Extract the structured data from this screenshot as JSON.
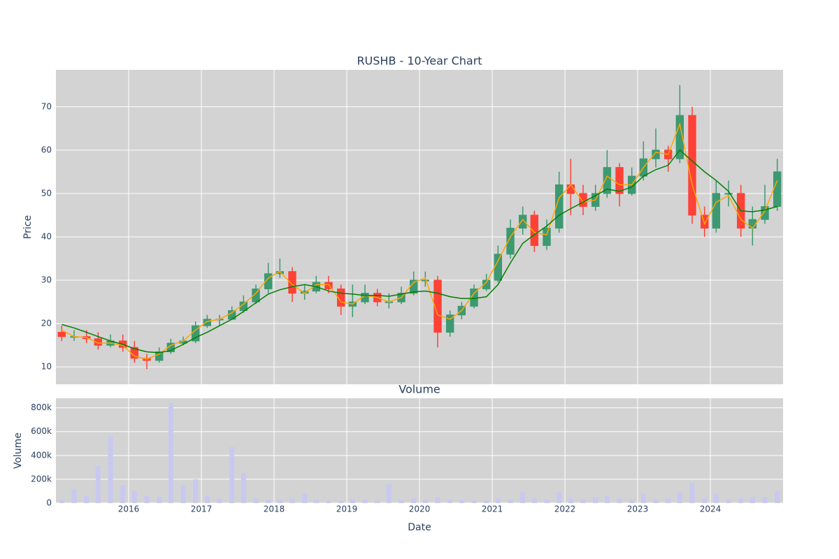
{
  "chart_data": [
    {
      "type": "candlestick",
      "title": "RUSHB - 10-Year Chart",
      "ylabel": "Price",
      "x": [
        2015.08,
        2015.25,
        2015.42,
        2015.58,
        2015.75,
        2015.92,
        2016.08,
        2016.25,
        2016.42,
        2016.58,
        2016.75,
        2016.92,
        2017.08,
        2017.25,
        2017.42,
        2017.58,
        2017.75,
        2017.92,
        2018.08,
        2018.25,
        2018.42,
        2018.58,
        2018.75,
        2018.92,
        2019.08,
        2019.25,
        2019.42,
        2019.58,
        2019.75,
        2019.92,
        2020.08,
        2020.25,
        2020.42,
        2020.58,
        2020.75,
        2020.92,
        2021.08,
        2021.25,
        2021.42,
        2021.58,
        2021.75,
        2021.92,
        2022.08,
        2022.25,
        2022.42,
        2022.58,
        2022.75,
        2022.92,
        2023.08,
        2023.25,
        2023.42,
        2023.58,
        2023.75,
        2023.92,
        2024.08,
        2024.25,
        2024.42,
        2024.58,
        2024.75,
        2024.92
      ],
      "open": [
        18,
        17,
        17,
        16.5,
        15,
        16,
        14.5,
        12,
        11.5,
        13.5,
        15.5,
        16,
        19.5,
        21,
        21,
        23,
        25,
        28,
        31.5,
        32,
        27,
        27.5,
        29.5,
        28,
        24,
        25,
        27,
        25,
        25,
        27,
        30,
        30,
        18,
        22,
        24,
        28,
        30,
        36,
        42,
        45,
        38,
        42,
        52,
        50,
        47,
        50,
        56,
        50,
        54,
        58,
        60,
        58,
        68,
        45,
        42,
        50,
        50,
        42,
        44,
        47
      ],
      "high": [
        19.5,
        18.5,
        18.5,
        18,
        17.5,
        17.5,
        16,
        13,
        14.5,
        16.5,
        17,
        20.5,
        22,
        22,
        24,
        26.5,
        29,
        34,
        35,
        33,
        29,
        31,
        31,
        29,
        29,
        29,
        28,
        27,
        28.5,
        32,
        32,
        31,
        23,
        25,
        29,
        31.5,
        38,
        44,
        47,
        46,
        44,
        55,
        58,
        52,
        52,
        60,
        57,
        56,
        62,
        65,
        61,
        75,
        70,
        47,
        53,
        53,
        52,
        47,
        52,
        58
      ],
      "low": [
        16,
        16,
        15.5,
        14,
        14.5,
        13.5,
        11,
        9.5,
        11,
        13,
        15,
        15.5,
        19,
        19.5,
        21,
        22.5,
        24.5,
        27,
        30.5,
        25,
        25.5,
        27,
        27,
        22,
        21.5,
        24.5,
        24,
        23.5,
        24.5,
        26.5,
        28.5,
        14.5,
        17,
        21,
        23.5,
        27.5,
        29.5,
        35,
        40.5,
        36.5,
        37,
        41,
        45,
        45,
        46,
        49,
        47,
        49.5,
        53,
        56,
        55,
        57,
        43,
        40,
        41,
        47,
        40,
        38,
        43,
        46
      ],
      "close": [
        17,
        17,
        16.5,
        15,
        16,
        14.5,
        12,
        11.5,
        13.5,
        15.5,
        16,
        19.5,
        21,
        21,
        23,
        25,
        28,
        31.5,
        32,
        27,
        27.5,
        29.5,
        28,
        24,
        25,
        27,
        25,
        25,
        27,
        30,
        30,
        18,
        22,
        24,
        28,
        30,
        36,
        42,
        45,
        38,
        42,
        52,
        50,
        47,
        50,
        56,
        50,
        54,
        58,
        60,
        58,
        68,
        45,
        42,
        50,
        50,
        42,
        44,
        47,
        55
      ],
      "increasing_color": "#3d9970",
      "decreasing_color": "#ff4136",
      "lines": [
        {
          "color": "#ffa500",
          "values": [
            18.5,
            17,
            16.8,
            15.5,
            15.5,
            15,
            12.5,
            11.8,
            13,
            15,
            16,
            18.5,
            20.5,
            21,
            22.5,
            24.5,
            27,
            30.5,
            32,
            29,
            27,
            29,
            29,
            25,
            24.5,
            26.5,
            26,
            25,
            26,
            29.5,
            30.5,
            22,
            21,
            23,
            27,
            29.5,
            34.5,
            40,
            44,
            41,
            40.5,
            49,
            52,
            48,
            48.5,
            54,
            52,
            52,
            56,
            59.5,
            59,
            66,
            52,
            43,
            48,
            49.5,
            44,
            42,
            46,
            53
          ]
        },
        {
          "color": "#008000",
          "values": [
            19.8,
            19,
            18,
            17,
            16,
            15.2,
            14.2,
            13.5,
            13.3,
            13.8,
            15.2,
            16.8,
            18,
            19.5,
            21,
            22.8,
            24.8,
            26.8,
            27.8,
            28.5,
            29,
            28.5,
            27.5,
            27,
            26.8,
            26.5,
            26.5,
            26.3,
            26.8,
            27.3,
            27.5,
            27,
            26.2,
            25.8,
            25.8,
            26.2,
            29,
            34,
            38.5,
            40.5,
            42.5,
            45,
            46.5,
            48,
            49.5,
            51,
            50.5,
            51.5,
            54,
            55.5,
            56.5,
            60,
            57.5,
            55,
            53,
            50.5,
            46,
            45.8,
            46.2,
            47
          ]
        }
      ],
      "xlim": [
        2015,
        2025
      ],
      "xticks": [
        2016,
        2017,
        2018,
        2019,
        2020,
        2021,
        2022,
        2023,
        2024
      ],
      "ylim": [
        6,
        78.5
      ],
      "yticks": [
        10,
        20,
        30,
        40,
        50,
        60,
        70
      ],
      "grid": true
    },
    {
      "type": "bar",
      "title": "Volume",
      "ylabel": "Volume",
      "xlabel": "Date",
      "color": "#c8c8f0",
      "x": [
        2015.08,
        2015.25,
        2015.42,
        2015.58,
        2015.75,
        2015.92,
        2016.08,
        2016.25,
        2016.42,
        2016.58,
        2016.75,
        2016.92,
        2017.08,
        2017.25,
        2017.42,
        2017.58,
        2017.75,
        2017.92,
        2018.08,
        2018.25,
        2018.42,
        2018.58,
        2018.75,
        2018.92,
        2019.08,
        2019.25,
        2019.42,
        2019.58,
        2019.75,
        2019.92,
        2020.08,
        2020.25,
        2020.42,
        2020.58,
        2020.75,
        2020.92,
        2021.08,
        2021.25,
        2021.42,
        2021.58,
        2021.75,
        2021.92,
        2022.08,
        2022.25,
        2022.42,
        2022.58,
        2022.75,
        2022.92,
        2023.08,
        2023.25,
        2023.42,
        2023.58,
        2023.75,
        2023.92,
        2024.08,
        2024.25,
        2024.42,
        2024.58,
        2024.75,
        2024.92
      ],
      "values": [
        25000,
        120000,
        60000,
        310000,
        560000,
        150000,
        100000,
        60000,
        50000,
        840000,
        150000,
        200000,
        60000,
        40000,
        470000,
        250000,
        40000,
        30000,
        30000,
        40000,
        80000,
        30000,
        20000,
        20000,
        30000,
        30000,
        20000,
        160000,
        25000,
        40000,
        30000,
        50000,
        30000,
        25000,
        20000,
        20000,
        40000,
        30000,
        90000,
        40000,
        30000,
        90000,
        40000,
        30000,
        50000,
        60000,
        40000,
        30000,
        80000,
        30000,
        40000,
        90000,
        170000,
        40000,
        80000,
        30000,
        40000,
        50000,
        50000,
        100000
      ],
      "xlim": [
        2015,
        2025
      ],
      "xticks": [
        2016,
        2017,
        2018,
        2019,
        2020,
        2021,
        2022,
        2023,
        2024
      ],
      "ylim": [
        0,
        880000
      ],
      "yticks": [
        0,
        {
          "value": 200000,
          "label": "200k"
        },
        {
          "value": 400000,
          "label": "400k"
        },
        {
          "value": 600000,
          "label": "600k"
        },
        {
          "value": 800000,
          "label": "800k"
        }
      ],
      "grid": true
    }
  ]
}
